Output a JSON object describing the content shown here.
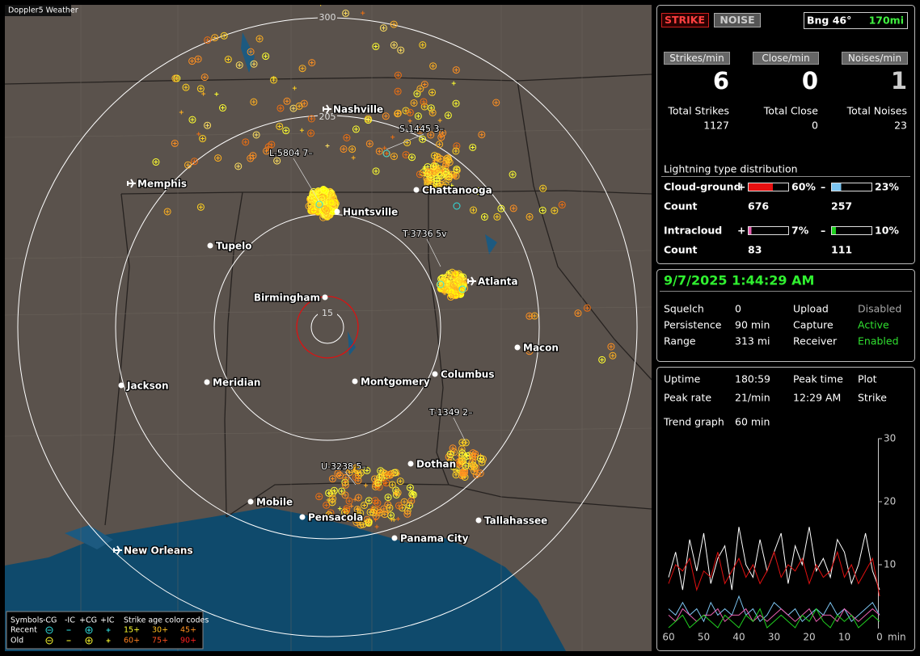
{
  "app_title": "Doppler5 Weather",
  "map": {
    "ring_labels": [
      300,
      205,
      15
    ],
    "cities": [
      "Nashville",
      "Memphis",
      "Huntsville",
      "Chattanooga",
      "Tupelo",
      "Atlanta",
      "Birmingham",
      "Macon",
      "Jackson",
      "Meridian",
      "Montgomery",
      "Columbus",
      "Dothan",
      "Mobile",
      "Pensacola",
      "Tallahassee",
      "Panama City",
      "New Orleans"
    ],
    "storm_labels": [
      "L-5804 7–",
      "S-1445 3–",
      "T-3736 5v",
      "T-1349 2–",
      "U-3238 5–"
    ]
  },
  "legend": {
    "symbols_title": "Symbols",
    "headers": [
      "-CG",
      "-IC",
      "+CG",
      "+IC"
    ],
    "age_title": "Strike age color codes",
    "rows": [
      {
        "label": "Recent",
        "ages": [
          "15+",
          "30+",
          "45+"
        ]
      },
      {
        "label": "Old",
        "ages": [
          "60+",
          "75+",
          "90+"
        ]
      }
    ]
  },
  "status": {
    "strike_button": "STRIKE",
    "noise_button": "NOISE",
    "bearing": "Bng 46°",
    "distance": "170mi",
    "rates": [
      {
        "label": "Strikes/min",
        "value": 6
      },
      {
        "label": "Close/min",
        "value": 0
      },
      {
        "label": "Noises/min",
        "value": 1
      }
    ],
    "totals": [
      {
        "label": "Total Strikes",
        "value": 1127
      },
      {
        "label": "Total Close",
        "value": 0
      },
      {
        "label": "Total Noises",
        "value": 23
      }
    ],
    "distribution": {
      "title": "Lightning type distribution",
      "count_label": "Count",
      "types": [
        {
          "name": "Cloud-ground",
          "positive": {
            "sign": "+",
            "percent": 60,
            "percent_label": "60%",
            "count": 676,
            "color": "#e81010"
          },
          "negative": {
            "sign": "–",
            "percent": 23,
            "percent_label": "23%",
            "count": 257,
            "color": "#7cc4f0"
          }
        },
        {
          "name": "Intracloud",
          "positive": {
            "sign": "+",
            "percent": 7,
            "percent_label": "7%",
            "count": 83,
            "color": "#e860b0"
          },
          "negative": {
            "sign": "–",
            "percent": 10,
            "percent_label": "10%",
            "count": 111,
            "color": "#20d020"
          }
        }
      ]
    }
  },
  "settings": {
    "datetime": "9/7/2025 1:44:29 AM",
    "rows": [
      [
        {
          "text": "Squelch"
        },
        {
          "text": "0"
        },
        {
          "text": "Upload"
        },
        {
          "text": "Disabled",
          "color": "#a8a8a8"
        }
      ],
      [
        {
          "text": "Persistence"
        },
        {
          "text": "90 min"
        },
        {
          "text": "Capture"
        },
        {
          "text": "Active",
          "color": "#30e030"
        }
      ],
      [
        {
          "text": "Range"
        },
        {
          "text": "313 mi"
        },
        {
          "text": "Receiver"
        },
        {
          "text": "Enabled",
          "color": "#30e030"
        }
      ]
    ]
  },
  "stats": {
    "rows": [
      [
        "Uptime",
        "180:59",
        "Peak time",
        "Plot"
      ],
      [
        "Peak rate",
        "21/min",
        "12:29 AM",
        "Strike"
      ],
      [
        "Trend graph",
        "60 min"
      ]
    ]
  },
  "trend_graph": {
    "xlim": [
      60,
      0
    ],
    "ylim": [
      0,
      30
    ],
    "xticks": [
      60,
      50,
      40,
      30,
      20,
      10,
      0
    ],
    "yticks": [
      10,
      20,
      30
    ],
    "x_label": "min",
    "x": [
      60,
      58,
      56,
      54,
      52,
      50,
      48,
      46,
      44,
      42,
      40,
      38,
      36,
      34,
      32,
      30,
      28,
      26,
      24,
      22,
      20,
      18,
      16,
      14,
      12,
      10,
      8,
      6,
      4,
      2,
      0
    ],
    "series": [
      {
        "color": "#ffffff",
        "values": [
          8,
          12,
          6,
          14,
          9,
          15,
          7,
          11,
          13,
          6,
          16,
          10,
          8,
          14,
          9,
          12,
          15,
          7,
          13,
          10,
          16,
          9,
          11,
          8,
          14,
          12,
          7,
          10,
          15,
          9,
          6
        ]
      },
      {
        "color": "#e01010",
        "values": [
          7,
          10,
          9,
          11,
          6,
          9,
          8,
          12,
          7,
          9,
          11,
          8,
          10,
          7,
          9,
          12,
          8,
          10,
          9,
          11,
          7,
          10,
          8,
          9,
          12,
          8,
          10,
          7,
          9,
          11,
          5
        ]
      },
      {
        "color": "#7cc4f0",
        "values": [
          3,
          2,
          4,
          2,
          3,
          1,
          4,
          2,
          3,
          2,
          5,
          2,
          3,
          1,
          2,
          4,
          3,
          2,
          3,
          1,
          2,
          3,
          2,
          4,
          2,
          3,
          1,
          2,
          3,
          4,
          2
        ]
      },
      {
        "color": "#e860b0",
        "values": [
          2,
          1,
          3,
          2,
          1,
          2,
          2,
          3,
          1,
          2,
          2,
          3,
          1,
          2,
          1,
          2,
          3,
          2,
          1,
          2,
          3,
          1,
          2,
          2,
          1,
          3,
          2,
          1,
          2,
          3,
          2
        ]
      },
      {
        "color": "#20d020",
        "values": [
          0,
          1,
          2,
          0,
          1,
          2,
          1,
          0,
          2,
          1,
          0,
          2,
          1,
          3,
          0,
          1,
          2,
          1,
          0,
          2,
          1,
          3,
          1,
          0,
          2,
          1,
          2,
          0,
          1,
          2,
          1
        ]
      }
    ]
  }
}
